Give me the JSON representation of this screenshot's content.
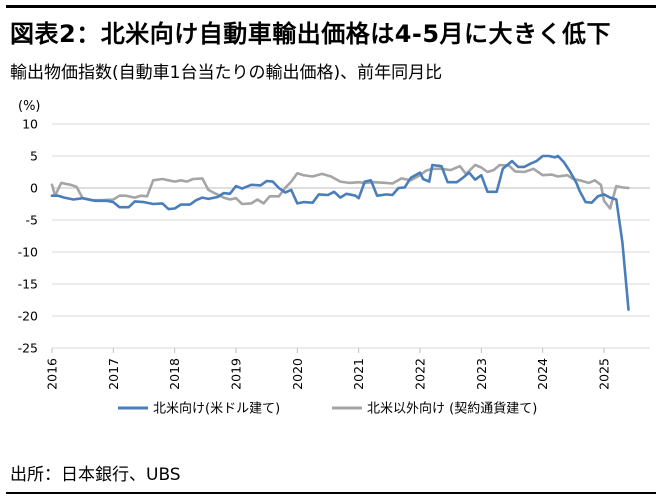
{
  "header": {
    "title": "図表2：北米向け自動車輸出価格は4-5月に大きく低下",
    "subtitle": "輸出物価指数(自動車1台当たりの輸出価格)、前年同月比"
  },
  "footer": {
    "source": "出所：日本銀行、UBS"
  },
  "chart_data": {
    "type": "line",
    "ylabel": "(%)",
    "ylim": [
      -25,
      10
    ],
    "yticks": [
      "10",
      "5",
      "0",
      "-5",
      "-10",
      "-15",
      "-20",
      "-25"
    ],
    "ytick_values": [
      10,
      5,
      0,
      -5,
      -10,
      -15,
      -20,
      -25
    ],
    "xlim": [
      2016.0,
      2025.75
    ],
    "xticks": [
      "2016",
      "2017",
      "2018",
      "2019",
      "2020",
      "2021",
      "2022",
      "2023",
      "2024",
      "2025"
    ],
    "xtick_values": [
      2016,
      2017,
      2018,
      2019,
      2020,
      2021,
      2022,
      2023,
      2024,
      2025
    ],
    "grid": "horizontal",
    "legend_position": "bottom",
    "series": [
      {
        "name": "北米向け(米ドル建て)",
        "color": "#4a7ebb",
        "points": [
          [
            2016.0,
            -1.2
          ],
          [
            2016.1,
            -1.2
          ],
          [
            2016.2,
            -1.5
          ],
          [
            2016.35,
            -1.8
          ],
          [
            2016.5,
            -1.6
          ],
          [
            2016.7,
            -2.0
          ],
          [
            2016.9,
            -2.0
          ],
          [
            2017.0,
            -2.2
          ],
          [
            2017.1,
            -3.0
          ],
          [
            2017.25,
            -3.0
          ],
          [
            2017.35,
            -2.1
          ],
          [
            2017.5,
            -2.2
          ],
          [
            2017.65,
            -2.5
          ],
          [
            2017.8,
            -2.4
          ],
          [
            2017.9,
            -3.3
          ],
          [
            2018.0,
            -3.2
          ],
          [
            2018.1,
            -2.6
          ],
          [
            2018.25,
            -2.6
          ],
          [
            2018.35,
            -1.9
          ],
          [
            2018.45,
            -1.5
          ],
          [
            2018.55,
            -1.7
          ],
          [
            2018.7,
            -1.4
          ],
          [
            2018.8,
            -0.8
          ],
          [
            2018.9,
            -0.9
          ],
          [
            2019.0,
            0.3
          ],
          [
            2019.1,
            -0.1
          ],
          [
            2019.25,
            0.5
          ],
          [
            2019.4,
            0.4
          ],
          [
            2019.5,
            1.1
          ],
          [
            2019.6,
            1.0
          ],
          [
            2019.7,
            0.0
          ],
          [
            2019.8,
            -0.7
          ],
          [
            2019.9,
            -0.3
          ],
          [
            2020.0,
            -2.4
          ],
          [
            2020.1,
            -2.2
          ],
          [
            2020.25,
            -2.3
          ],
          [
            2020.35,
            -1.0
          ],
          [
            2020.5,
            -1.1
          ],
          [
            2020.6,
            -0.6
          ],
          [
            2020.7,
            -1.5
          ],
          [
            2020.8,
            -0.9
          ],
          [
            2020.95,
            -1.2
          ],
          [
            2021.0,
            -1.6
          ],
          [
            2021.1,
            1.0
          ],
          [
            2021.2,
            1.2
          ],
          [
            2021.3,
            -1.2
          ],
          [
            2021.45,
            -1.0
          ],
          [
            2021.55,
            -1.1
          ],
          [
            2021.65,
            0.0
          ],
          [
            2021.75,
            0.1
          ],
          [
            2021.85,
            1.6
          ],
          [
            2022.0,
            2.4
          ],
          [
            2022.05,
            1.4
          ],
          [
            2022.15,
            1.0
          ],
          [
            2022.2,
            3.6
          ],
          [
            2022.35,
            3.4
          ],
          [
            2022.45,
            0.9
          ],
          [
            2022.6,
            0.9
          ],
          [
            2022.7,
            1.6
          ],
          [
            2022.8,
            2.4
          ],
          [
            2022.9,
            1.3
          ],
          [
            2023.0,
            2.0
          ],
          [
            2023.1,
            -0.6
          ],
          [
            2023.25,
            -0.6
          ],
          [
            2023.35,
            3.0
          ],
          [
            2023.5,
            4.2
          ],
          [
            2023.6,
            3.3
          ],
          [
            2023.7,
            3.3
          ],
          [
            2023.8,
            3.8
          ],
          [
            2023.9,
            4.2
          ],
          [
            2024.0,
            5.0
          ],
          [
            2024.1,
            5.0
          ],
          [
            2024.2,
            4.8
          ],
          [
            2024.25,
            5.0
          ],
          [
            2024.35,
            4.0
          ],
          [
            2024.45,
            2.5
          ],
          [
            2024.55,
            0.8
          ],
          [
            2024.6,
            -0.4
          ],
          [
            2024.7,
            -2.2
          ],
          [
            2024.8,
            -2.3
          ],
          [
            2024.9,
            -1.3
          ],
          [
            2025.0,
            -1.0
          ],
          [
            2025.1,
            -1.5
          ],
          [
            2025.2,
            -1.8
          ],
          [
            2025.3,
            -8.5
          ],
          [
            2025.4,
            -19.0
          ]
        ]
      },
      {
        "name": "北米以外向け (契約通貨建て)",
        "color": "#a5a5a5",
        "points": [
          [
            2016.0,
            0.5
          ],
          [
            2016.05,
            -1.2
          ],
          [
            2016.15,
            0.8
          ],
          [
            2016.3,
            0.5
          ],
          [
            2016.4,
            0.2
          ],
          [
            2016.5,
            -1.6
          ],
          [
            2016.65,
            -1.9
          ],
          [
            2016.8,
            -1.9
          ],
          [
            2017.0,
            -1.8
          ],
          [
            2017.1,
            -1.2
          ],
          [
            2017.2,
            -1.2
          ],
          [
            2017.35,
            -1.5
          ],
          [
            2017.45,
            -1.2
          ],
          [
            2017.55,
            -1.3
          ],
          [
            2017.65,
            1.2
          ],
          [
            2017.8,
            1.4
          ],
          [
            2017.9,
            1.2
          ],
          [
            2018.0,
            1.0
          ],
          [
            2018.1,
            1.2
          ],
          [
            2018.2,
            1.0
          ],
          [
            2018.3,
            1.4
          ],
          [
            2018.45,
            1.5
          ],
          [
            2018.55,
            -0.3
          ],
          [
            2018.65,
            -0.8
          ],
          [
            2018.8,
            -1.5
          ],
          [
            2018.9,
            -1.8
          ],
          [
            2019.0,
            -1.6
          ],
          [
            2019.1,
            -2.5
          ],
          [
            2019.25,
            -2.4
          ],
          [
            2019.35,
            -1.8
          ],
          [
            2019.45,
            -2.4
          ],
          [
            2019.55,
            -1.3
          ],
          [
            2019.7,
            -1.3
          ],
          [
            2019.8,
            0.0
          ],
          [
            2019.9,
            1.0
          ],
          [
            2020.0,
            2.3
          ],
          [
            2020.1,
            2.0
          ],
          [
            2020.25,
            1.8
          ],
          [
            2020.4,
            2.2
          ],
          [
            2020.55,
            1.8
          ],
          [
            2020.7,
            1.0
          ],
          [
            2020.85,
            0.8
          ],
          [
            2021.0,
            0.9
          ],
          [
            2021.1,
            0.8
          ],
          [
            2021.25,
            0.9
          ],
          [
            2021.45,
            0.8
          ],
          [
            2021.55,
            0.7
          ],
          [
            2021.7,
            1.5
          ],
          [
            2021.85,
            1.2
          ],
          [
            2022.0,
            2.0
          ],
          [
            2022.1,
            2.7
          ],
          [
            2022.2,
            3.0
          ],
          [
            2022.35,
            3.0
          ],
          [
            2022.5,
            2.8
          ],
          [
            2022.65,
            3.4
          ],
          [
            2022.75,
            2.2
          ],
          [
            2022.9,
            3.6
          ],
          [
            2023.0,
            3.2
          ],
          [
            2023.1,
            2.5
          ],
          [
            2023.2,
            2.8
          ],
          [
            2023.3,
            3.6
          ],
          [
            2023.45,
            3.5
          ],
          [
            2023.55,
            2.6
          ],
          [
            2023.7,
            2.5
          ],
          [
            2023.85,
            3.0
          ],
          [
            2024.0,
            2.0
          ],
          [
            2024.15,
            2.1
          ],
          [
            2024.25,
            1.8
          ],
          [
            2024.4,
            2.0
          ],
          [
            2024.5,
            1.4
          ],
          [
            2024.6,
            1.2
          ],
          [
            2024.75,
            0.8
          ],
          [
            2024.85,
            1.2
          ],
          [
            2024.95,
            0.5
          ],
          [
            2025.0,
            -2.0
          ],
          [
            2025.1,
            -3.2
          ],
          [
            2025.2,
            0.3
          ],
          [
            2025.3,
            0.1
          ],
          [
            2025.4,
            0.0
          ]
        ]
      }
    ]
  }
}
